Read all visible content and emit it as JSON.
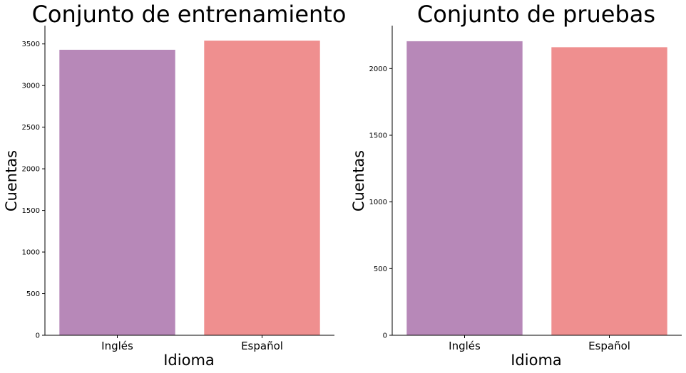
{
  "chart_data": [
    {
      "type": "bar",
      "title": "Conjunto de entrenamiento",
      "xlabel": "Idioma",
      "ylabel": "Cuentas",
      "categories": [
        "Inglés",
        "Español"
      ],
      "values": [
        3430,
        3540
      ],
      "colors": [
        "#b788b8",
        "#ef8f8f"
      ],
      "ylim": [
        0,
        3720
      ],
      "yticks": [
        0,
        500,
        1000,
        1500,
        2000,
        2500,
        3000,
        3500
      ],
      "grid": false,
      "legend": "none"
    },
    {
      "type": "bar",
      "title": "Conjunto de pruebas",
      "xlabel": "Idioma",
      "ylabel": "Cuentas",
      "categories": [
        "Inglés",
        "Español"
      ],
      "values": [
        2205,
        2160
      ],
      "colors": [
        "#b788b8",
        "#ef8f8f"
      ],
      "ylim": [
        0,
        2322
      ],
      "yticks": [
        0,
        500,
        1000,
        1500,
        2000
      ],
      "grid": false,
      "legend": "none"
    }
  ]
}
